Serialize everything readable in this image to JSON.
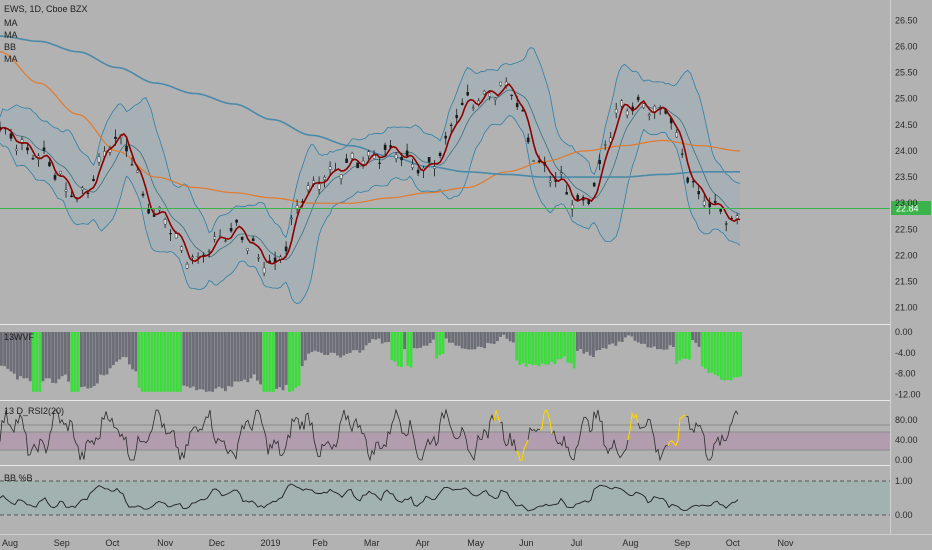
{
  "header": {
    "symbol_line": "EWS, 1D, Cboe BZX",
    "indicators": [
      "MA",
      "MA",
      "BB",
      "MA"
    ]
  },
  "panes": {
    "wvf_label": "13WVF",
    "rsi_label": "13  D_RSI2(20)",
    "bb_label": "BB %B"
  },
  "last_price": "22.84",
  "x_axis": [
    "Aug",
    "Sep",
    "Oct",
    "Nov",
    "Dec",
    "2019",
    "Feb",
    "Mar",
    "Apr",
    "May",
    "Jun",
    "Jul",
    "Aug",
    "Sep",
    "Oct",
    "Nov"
  ],
  "price_axis": [
    "26.50",
    "26.00",
    "25.50",
    "25.00",
    "24.50",
    "24.00",
    "23.50",
    "23.00",
    "22.50",
    "22.00",
    "21.50",
    "21.00"
  ],
  "wvf_axis": [
    "0.00",
    "-4.00",
    "-8.00",
    "-12.00"
  ],
  "rsi_axis": [
    "80.00",
    "40.00",
    "0.00"
  ],
  "pb_axis": [
    "1.00",
    "0.00"
  ],
  "colors": {
    "background": "#b2b2b2",
    "price_line": "#8b0000",
    "ma_orange": "#e07a2c",
    "ma_blue": "#4a8aa8",
    "bb_band": "#2d7fa6",
    "wvf_green": "#3ddc3d",
    "wvf_gray": "#6d6d78",
    "rsi_band": "#b28cac",
    "highlight_yellow": "#ffd700",
    "current_price_line": "#3ab34a"
  },
  "chart_data": {
    "type": "line",
    "title": "EWS, 1D, Cboe BZX",
    "x": [
      "2018-08-01",
      "2018-08-20",
      "2018-09-10",
      "2018-10-01",
      "2018-10-22",
      "2018-11-12",
      "2018-12-03",
      "2018-12-24",
      "2019-01-14",
      "2019-02-04",
      "2019-02-25",
      "2019-03-18",
      "2019-04-08",
      "2019-04-29",
      "2019-05-20",
      "2019-06-10",
      "2019-07-01",
      "2019-07-22",
      "2019-08-12",
      "2019-08-28"
    ],
    "series": [
      {
        "values": [
          24.4,
          23.9,
          23.1,
          24.3,
          22.8,
          21.9,
          22.5,
          21.8,
          23.4,
          23.8,
          24.0,
          23.7,
          24.9,
          25.2,
          23.6,
          23.0,
          24.9,
          24.8,
          23.1,
          22.6
        ]
      },
      {
        "values": [
          25.9,
          25.3,
          24.7,
          24.0,
          23.5,
          23.3,
          23.2,
          23.1,
          23.0,
          23.0,
          23.1,
          23.2,
          23.3,
          23.6,
          23.8,
          24.0,
          24.1,
          24.2,
          24.1,
          24.0
        ]
      },
      {
        "values": [
          26.2,
          26.1,
          25.9,
          25.6,
          25.3,
          25.1,
          24.9,
          24.6,
          24.3,
          24.1,
          23.9,
          23.7,
          23.6,
          23.55,
          23.5,
          23.5,
          23.5,
          23.55,
          23.6,
          23.6
        ]
      }
    ],
    "ylim": [
      20.8,
      26.7
    ],
    "last_value": 22.84
  }
}
